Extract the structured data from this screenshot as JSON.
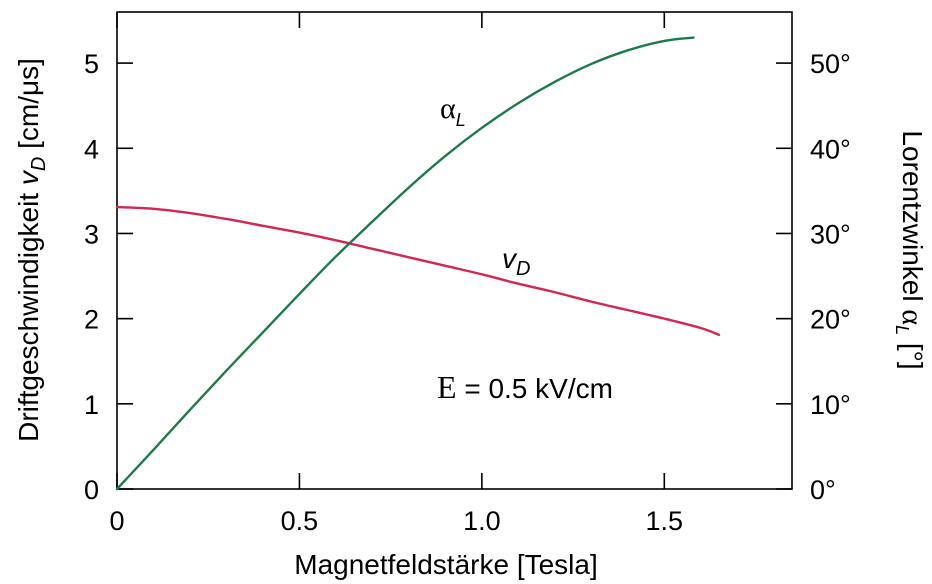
{
  "chart_data": {
    "type": "line",
    "xlabel": "Magnetfeldstärke [Tesla]",
    "ylabel": {
      "prefix": "Driftgeschwindigkeit ",
      "symbol": "v",
      "subscript": "D",
      "suffix": " [cm/μs]"
    },
    "y2label": {
      "prefix": "Lorentzwinkel ",
      "symbol": "α",
      "subscript": "L",
      "suffix": " [°]"
    },
    "xlim": [
      0,
      1.85
    ],
    "ylim": [
      0,
      5.6
    ],
    "y2lim": [
      0,
      56
    ],
    "x_ticks": [
      0,
      0.5,
      1.0,
      1.5
    ],
    "x_tick_labels": [
      "0",
      "0.5",
      "1.0",
      "1.5"
    ],
    "y_ticks": [
      0,
      1,
      2,
      3,
      4,
      5
    ],
    "y_tick_labels": [
      "0",
      "1",
      "2",
      "3",
      "4",
      "5"
    ],
    "y2_ticks": [
      0,
      10,
      20,
      30,
      40,
      50
    ],
    "y2_tick_labels": [
      "0°",
      "10°",
      "20°",
      "30°",
      "40°",
      "50°"
    ],
    "grid": false,
    "annotation": {
      "symbol": "E",
      "text": " = 0.5 kV/cm"
    },
    "series": [
      {
        "name": "v",
        "subscript": "D",
        "axis": "left",
        "color": "#d4264f",
        "x": [
          0,
          0.1,
          0.2,
          0.3,
          0.4,
          0.5,
          0.6,
          0.7,
          0.8,
          0.9,
          1.0,
          1.1,
          1.2,
          1.3,
          1.4,
          1.5,
          1.6,
          1.65
        ],
        "y": [
          3.31,
          3.29,
          3.24,
          3.17,
          3.09,
          3.01,
          2.92,
          2.82,
          2.72,
          2.62,
          2.52,
          2.41,
          2.31,
          2.2,
          2.1,
          2.0,
          1.89,
          1.81
        ]
      },
      {
        "name": "α",
        "subscript": "L",
        "axis": "right",
        "color": "#1f7a4a",
        "x": [
          0,
          0.1,
          0.2,
          0.3,
          0.4,
          0.5,
          0.6,
          0.7,
          0.8,
          0.9,
          1.0,
          1.1,
          1.2,
          1.3,
          1.4,
          1.5,
          1.58
        ],
        "y": [
          0,
          4.6,
          9.3,
          13.9,
          18.4,
          22.9,
          27.3,
          31.4,
          35.4,
          39.1,
          42.4,
          45.3,
          47.8,
          49.9,
          51.5,
          52.6,
          53.0
        ]
      }
    ]
  }
}
